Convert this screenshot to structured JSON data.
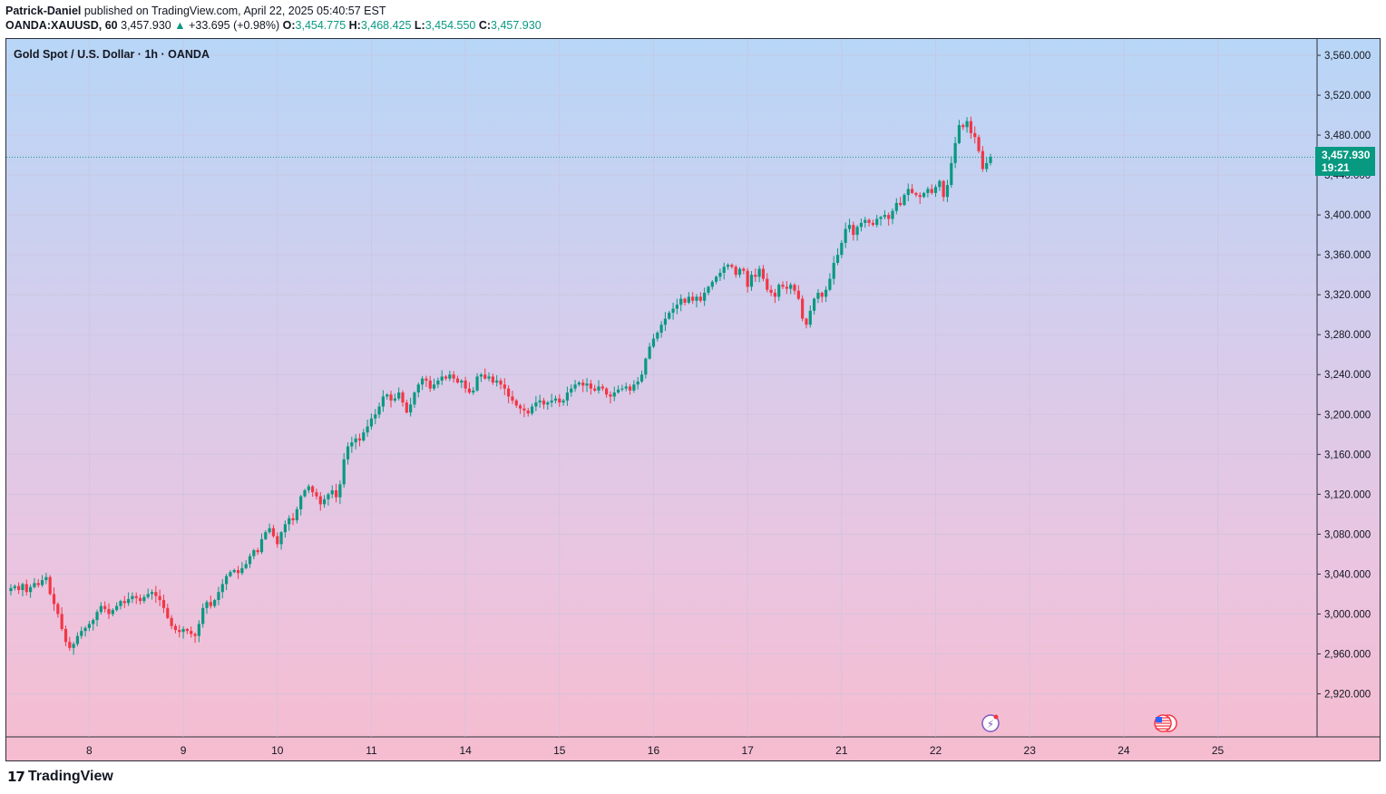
{
  "header": {
    "author": "Patrick-Daniel",
    "published_text": "published on TradingView.com, April 22, 2025 05:40:57 EST",
    "symbol": "OANDA:XAUUSD, 60",
    "last": "3,457.930",
    "change": "+33.695 (+0.98%)",
    "open_label": "O:",
    "open": "3,454.775",
    "high_label": "H:",
    "high": "3,468.425",
    "low_label": "L:",
    "low": "3,454.550",
    "close_label": "C:",
    "close": "3,457.930"
  },
  "chart_title": "Gold Spot / U.S. Dollar · 1h · OANDA",
  "price_tag": {
    "price": "3,457.930",
    "countdown": "19:21"
  },
  "footer": {
    "brand": "TradingView"
  },
  "colors": {
    "up": "#089981",
    "down": "#f23645",
    "grid": "#c9c3dc",
    "text": "#131722"
  },
  "chart_data": {
    "type": "candlestick",
    "title": "Gold Spot / U.S. Dollar · 1h · OANDA",
    "xlabel": "",
    "ylabel": "",
    "ylim": [
      2895,
      3570
    ],
    "y_ticks": [
      2920,
      2960,
      3000,
      3040,
      3080,
      3120,
      3160,
      3200,
      3240,
      3280,
      3320,
      3360,
      3400,
      3440,
      3480,
      3520,
      3560
    ],
    "y_tick_labels": [
      "2,920.000",
      "2,960.000",
      "3,000.000",
      "3,040.000",
      "3,080.000",
      "3,120.000",
      "3,160.000",
      "3,200.000",
      "3,240.000",
      "3,280.000",
      "3,320.000",
      "3,360.000",
      "3,400.000",
      "3,440.000",
      "3,480.000",
      "3,520.000",
      "3,560.000"
    ],
    "x_ticks": [
      "8",
      "9",
      "10",
      "11",
      "14",
      "15",
      "16",
      "17",
      "21",
      "22",
      "23",
      "24",
      "25"
    ],
    "x_tick_bars": [
      20,
      44,
      68,
      92,
      116,
      140,
      164,
      188,
      212,
      236,
      260,
      284,
      308
    ],
    "last_price": 3457.93,
    "close": [
      3026,
      3028,
      3024,
      3030,
      3022,
      3027,
      3031,
      3029,
      3034,
      3037,
      3020,
      3010,
      3000,
      2985,
      2972,
      2966,
      2970,
      2978,
      2983,
      2986,
      2990,
      2994,
      3002,
      3008,
      3005,
      3000,
      3004,
      3008,
      3013,
      3011,
      3015,
      3018,
      3016,
      3013,
      3017,
      3020,
      3022,
      3018,
      3014,
      3006,
      2996,
      2988,
      2984,
      2982,
      2985,
      2983,
      2980,
      2978,
      2990,
      3006,
      3012,
      3008,
      3014,
      3022,
      3030,
      3038,
      3042,
      3044,
      3041,
      3046,
      3050,
      3058,
      3064,
      3062,
      3075,
      3082,
      3086,
      3078,
      3070,
      3082,
      3090,
      3096,
      3094,
      3105,
      3118,
      3124,
      3128,
      3122,
      3118,
      3110,
      3115,
      3120,
      3124,
      3117,
      3130,
      3155,
      3168,
      3172,
      3176,
      3174,
      3182,
      3188,
      3196,
      3200,
      3208,
      3218,
      3220,
      3214,
      3216,
      3222,
      3212,
      3202,
      3210,
      3222,
      3230,
      3236,
      3234,
      3226,
      3230,
      3234,
      3238,
      3236,
      3240,
      3236,
      3232,
      3234,
      3226,
      3222,
      3224,
      3238,
      3240,
      3236,
      3238,
      3232,
      3234,
      3230,
      3226,
      3218,
      3214,
      3209,
      3206,
      3204,
      3201,
      3208,
      3212,
      3214,
      3210,
      3212,
      3214,
      3216,
      3212,
      3214,
      3222,
      3226,
      3230,
      3232,
      3229,
      3231,
      3226,
      3224,
      3228,
      3226,
      3220,
      3218,
      3222,
      3225,
      3226,
      3228,
      3224,
      3230,
      3233,
      3240,
      3256,
      3268,
      3276,
      3282,
      3290,
      3296,
      3302,
      3306,
      3310,
      3316,
      3312,
      3318,
      3314,
      3318,
      3314,
      3322,
      3328,
      3333,
      3338,
      3342,
      3348,
      3350,
      3348,
      3340,
      3346,
      3344,
      3328,
      3340,
      3338,
      3346,
      3336,
      3325,
      3322,
      3318,
      3330,
      3328,
      3326,
      3330,
      3324,
      3316,
      3296,
      3290,
      3304,
      3316,
      3322,
      3318,
      3325,
      3336,
      3352,
      3360,
      3372,
      3386,
      3390,
      3380,
      3388,
      3392,
      3395,
      3392,
      3390,
      3396,
      3398,
      3400,
      3396,
      3404,
      3412,
      3410,
      3420,
      3426,
      3422,
      3420,
      3418,
      3422,
      3426,
      3422,
      3428,
      3434,
      3418,
      3430,
      3452,
      3472,
      3490,
      3488,
      3494,
      3482,
      3478,
      3464,
      3446,
      3452,
      3458
    ]
  }
}
